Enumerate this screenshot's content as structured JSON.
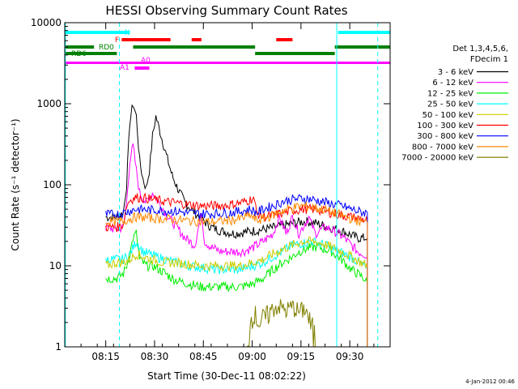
{
  "chart_data": {
    "type": "line",
    "title": "HESSI Observing Summary Count Rates",
    "xlabel": "Start Time (30-Dec-11 08:02:22)",
    "ylabel": "Count Rate (s⁻¹ detector⁻¹)",
    "yscale": "log",
    "ylim": [
      1,
      10000
    ],
    "xlim_minutes": [
      0,
      100
    ],
    "x_unit": "minutes after 08:02:22",
    "x_ticks": [
      {
        "label": "08:15",
        "t": 12.6
      },
      {
        "label": "08:30",
        "t": 27.6
      },
      {
        "label": "08:45",
        "t": 42.6
      },
      {
        "label": "09:00",
        "t": 57.6
      },
      {
        "label": "09:15",
        "t": 72.6
      },
      {
        "label": "09:30",
        "t": 87.6
      }
    ],
    "y_ticks": [
      {
        "label": "1",
        "v": 1
      },
      {
        "label": "10",
        "v": 10
      },
      {
        "label": "100",
        "v": 100
      },
      {
        "label": "1000",
        "v": 1000
      },
      {
        "label": "10000",
        "v": 10000
      }
    ],
    "legend_header": [
      "Det 1,3,4,5,6,",
      "FDecim 1"
    ],
    "legend_position": "right",
    "series": [
      {
        "name": "3 - 6 keV",
        "color": "#000000",
        "points": [
          [
            12.6,
            40
          ],
          [
            16,
            40
          ],
          [
            18,
            45
          ],
          [
            19,
            100
          ],
          [
            20,
            600
          ],
          [
            21,
            1000
          ],
          [
            22,
            700
          ],
          [
            23,
            200
          ],
          [
            24,
            120
          ],
          [
            25,
            90
          ],
          [
            26,
            150
          ],
          [
            27,
            400
          ],
          [
            28,
            700
          ],
          [
            29,
            500
          ],
          [
            31,
            250
          ],
          [
            33,
            130
          ],
          [
            35,
            85
          ],
          [
            37,
            60
          ],
          [
            40,
            45
          ],
          [
            43,
            35
          ],
          [
            45,
            30
          ],
          [
            48,
            27
          ],
          [
            52,
            25
          ],
          [
            55,
            26
          ],
          [
            58,
            27
          ],
          [
            61,
            28
          ],
          [
            65,
            30
          ],
          [
            68,
            32
          ],
          [
            71,
            34
          ],
          [
            73,
            35
          ],
          [
            75,
            35
          ],
          [
            78,
            33
          ],
          [
            81,
            30
          ],
          [
            84,
            28
          ],
          [
            86,
            26
          ],
          [
            88,
            24
          ],
          [
            90,
            22
          ],
          [
            92,
            22
          ],
          [
            93,
            22
          ]
        ]
      },
      {
        "name": "6 - 12 keV",
        "color": "#ff00ff",
        "points": [
          [
            12.6,
            30
          ],
          [
            16,
            28
          ],
          [
            18,
            30
          ],
          [
            19,
            60
          ],
          [
            20,
            200
          ],
          [
            21,
            300
          ],
          [
            22,
            150
          ],
          [
            23,
            80
          ],
          [
            25,
            60
          ],
          [
            27,
            80
          ],
          [
            29,
            60
          ],
          [
            31,
            45
          ],
          [
            33,
            35
          ],
          [
            35,
            28
          ],
          [
            37,
            22
          ],
          [
            40,
            18
          ],
          [
            42,
            45
          ],
          [
            43,
            20
          ],
          [
            45,
            17
          ],
          [
            48,
            15
          ],
          [
            52,
            15
          ],
          [
            55,
            15
          ],
          [
            58,
            17
          ],
          [
            61,
            20
          ],
          [
            64,
            25
          ],
          [
            66,
            40
          ],
          [
            68,
            25
          ],
          [
            70,
            40
          ],
          [
            72,
            25
          ],
          [
            75,
            40
          ],
          [
            77,
            25
          ],
          [
            80,
            30
          ],
          [
            82,
            28
          ],
          [
            84,
            25
          ],
          [
            86,
            22
          ],
          [
            88,
            18
          ],
          [
            90,
            15
          ],
          [
            92,
            14
          ],
          [
            93,
            13
          ]
        ]
      },
      {
        "name": "12 - 25 keV",
        "color": "#00ee00",
        "points": [
          [
            12.6,
            7
          ],
          [
            16,
            7
          ],
          [
            18,
            8
          ],
          [
            19,
            10
          ],
          [
            20,
            14
          ],
          [
            21,
            22
          ],
          [
            22,
            25
          ],
          [
            23,
            12
          ],
          [
            25,
            10
          ],
          [
            27,
            10
          ],
          [
            29,
            9
          ],
          [
            31,
            8
          ],
          [
            33,
            7
          ],
          [
            35,
            6.5
          ],
          [
            38,
            6
          ],
          [
            42,
            5.5
          ],
          [
            46,
            5.5
          ],
          [
            50,
            5.5
          ],
          [
            54,
            5.5
          ],
          [
            58,
            6
          ],
          [
            61,
            7
          ],
          [
            64,
            9
          ],
          [
            67,
            11
          ],
          [
            70,
            13
          ],
          [
            72,
            15
          ],
          [
            74,
            16
          ],
          [
            76,
            17
          ],
          [
            78,
            17
          ],
          [
            80,
            16
          ],
          [
            82,
            15
          ],
          [
            84,
            13
          ],
          [
            86,
            11
          ],
          [
            88,
            9
          ],
          [
            90,
            8
          ],
          [
            92,
            7
          ],
          [
            93,
            6
          ]
        ]
      },
      {
        "name": "25 - 50 keV",
        "color": "#00ffff",
        "points": [
          [
            12.6,
            12
          ],
          [
            16,
            12
          ],
          [
            18,
            12
          ],
          [
            20,
            14
          ],
          [
            22,
            20
          ],
          [
            24,
            15
          ],
          [
            26,
            14
          ],
          [
            28,
            13
          ],
          [
            31,
            12
          ],
          [
            34,
            11
          ],
          [
            38,
            10
          ],
          [
            42,
            9.5
          ],
          [
            46,
            9
          ],
          [
            50,
            9
          ],
          [
            54,
            9
          ],
          [
            58,
            10
          ],
          [
            61,
            11
          ],
          [
            64,
            13
          ],
          [
            67,
            15
          ],
          [
            70,
            18
          ],
          [
            73,
            19
          ],
          [
            76,
            20
          ],
          [
            78,
            19
          ],
          [
            80,
            18
          ],
          [
            83,
            16
          ],
          [
            86,
            14
          ],
          [
            89,
            12
          ],
          [
            92,
            10
          ],
          [
            93,
            9
          ]
        ]
      },
      {
        "name": "50 - 100 keV",
        "color": "#cccc00",
        "points": [
          [
            12.6,
            10
          ],
          [
            16,
            11
          ],
          [
            18,
            11
          ],
          [
            20,
            12
          ],
          [
            22,
            14
          ],
          [
            24,
            13
          ],
          [
            27,
            12
          ],
          [
            30,
            11
          ],
          [
            34,
            11
          ],
          [
            38,
            10.5
          ],
          [
            42,
            10
          ],
          [
            46,
            10
          ],
          [
            50,
            10
          ],
          [
            54,
            10
          ],
          [
            58,
            11
          ],
          [
            61,
            12
          ],
          [
            64,
            14
          ],
          [
            67,
            16
          ],
          [
            70,
            18
          ],
          [
            73,
            20
          ],
          [
            76,
            20
          ],
          [
            79,
            19
          ],
          [
            82,
            17
          ],
          [
            85,
            15
          ],
          [
            88,
            13
          ],
          [
            91,
            11
          ],
          [
            93,
            10
          ]
        ]
      },
      {
        "name": "100 - 300 keV",
        "color": "#ff0000",
        "points": [
          [
            12.6,
            30
          ],
          [
            16,
            30
          ],
          [
            18,
            32
          ],
          [
            19,
            55
          ],
          [
            20,
            65
          ],
          [
            22,
            70
          ],
          [
            25,
            68
          ],
          [
            28,
            65
          ],
          [
            31,
            62
          ],
          [
            34,
            60
          ],
          [
            38,
            57
          ],
          [
            42,
            55
          ],
          [
            46,
            55
          ],
          [
            50,
            56
          ],
          [
            54,
            60
          ],
          [
            57,
            65
          ],
          [
            58,
            70
          ],
          [
            59,
            45
          ],
          [
            61,
            40
          ],
          [
            64,
            42
          ],
          [
            67,
            45
          ],
          [
            70,
            48
          ],
          [
            73,
            50
          ],
          [
            76,
            50
          ],
          [
            79,
            48
          ],
          [
            82,
            45
          ],
          [
            85,
            42
          ],
          [
            88,
            40
          ],
          [
            91,
            38
          ],
          [
            93,
            36
          ]
        ]
      },
      {
        "name": "300 - 800 keV",
        "color": "#0000ff",
        "points": [
          [
            12.6,
            43
          ],
          [
            16,
            43
          ],
          [
            18,
            45
          ],
          [
            20,
            48
          ],
          [
            22,
            50
          ],
          [
            26,
            49
          ],
          [
            30,
            48
          ],
          [
            34,
            47
          ],
          [
            38,
            45
          ],
          [
            42,
            44
          ],
          [
            46,
            44
          ],
          [
            50,
            45
          ],
          [
            54,
            47
          ],
          [
            57,
            50
          ],
          [
            59,
            45
          ],
          [
            61,
            50
          ],
          [
            64,
            55
          ],
          [
            67,
            62
          ],
          [
            70,
            66
          ],
          [
            73,
            68
          ],
          [
            76,
            66
          ],
          [
            79,
            62
          ],
          [
            82,
            58
          ],
          [
            85,
            55
          ],
          [
            88,
            50
          ],
          [
            91,
            46
          ],
          [
            93,
            45
          ]
        ]
      },
      {
        "name": "800 - 7000 keV",
        "color": "#ff8800",
        "points": [
          [
            12.6,
            35
          ],
          [
            16,
            35
          ],
          [
            18,
            36
          ],
          [
            20,
            38
          ],
          [
            22,
            40
          ],
          [
            26,
            39
          ],
          [
            30,
            38
          ],
          [
            34,
            37
          ],
          [
            38,
            36
          ],
          [
            42,
            35
          ],
          [
            46,
            35
          ],
          [
            50,
            36
          ],
          [
            54,
            38
          ],
          [
            57,
            42
          ],
          [
            59,
            36
          ],
          [
            61,
            38
          ],
          [
            64,
            42
          ],
          [
            67,
            48
          ],
          [
            70,
            52
          ],
          [
            73,
            55
          ],
          [
            76,
            53
          ],
          [
            79,
            50
          ],
          [
            82,
            46
          ],
          [
            85,
            42
          ],
          [
            88,
            38
          ],
          [
            91,
            35
          ],
          [
            93,
            34
          ]
        ]
      },
      {
        "name": "7000 - 20000 keV",
        "color": "#808000",
        "points": [
          [
            12.6,
            1
          ],
          [
            56,
            1
          ],
          [
            57,
            1.8
          ],
          [
            58,
            2.5
          ],
          [
            60,
            1.8
          ],
          [
            62,
            2.2
          ],
          [
            64,
            2.8
          ],
          [
            66,
            3.0
          ],
          [
            68,
            2.6
          ],
          [
            70,
            3.0
          ],
          [
            72,
            2.5
          ],
          [
            74,
            2.8
          ],
          [
            75,
            2.0
          ],
          [
            77,
            1
          ],
          [
            93,
            1
          ]
        ]
      }
    ],
    "flags": [
      {
        "label": "N",
        "color": "#00ffff",
        "segments": [
          [
            0,
            20
          ],
          [
            84,
            100
          ]
        ]
      },
      {
        "label": "F",
        "color": "#ff0000",
        "segments": [
          [
            17.5,
            32.5
          ],
          [
            39,
            42
          ],
          [
            65,
            70
          ]
        ]
      },
      {
        "label": "RD0",
        "color": "#008000",
        "segments": [
          [
            0,
            9
          ],
          [
            21,
            58.5
          ],
          [
            83,
            100
          ]
        ]
      },
      {
        "label": "RD6",
        "color": "#008000",
        "segments": [
          [
            0,
            16
          ],
          [
            58.5,
            83
          ]
        ]
      },
      {
        "label": "A1",
        "color": "#ff00ff",
        "segments": [
          [
            21.5,
            23.5
          ]
        ]
      },
      {
        "label": "A0",
        "color": "#ff00ff",
        "segments": [
          [
            23.5,
            26
          ]
        ]
      }
    ],
    "attenuator_line": {
      "color": "#ff00ff",
      "value_y": 3200
    },
    "vlines": [
      {
        "t": 16.8,
        "style": "dashed",
        "color": "#00ffff"
      },
      {
        "t": 83.6,
        "style": "solid",
        "color": "#00ffff"
      },
      {
        "t": 96.2,
        "style": "dashed",
        "color": "#00ffff"
      },
      {
        "t": 0.2,
        "style": "solid",
        "color": "#00ffff"
      }
    ]
  },
  "footer": "4-Jan-2012 00:46"
}
